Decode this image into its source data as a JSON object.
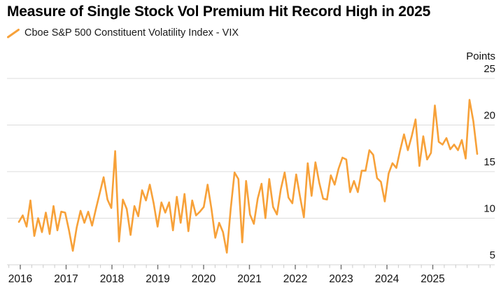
{
  "header": {
    "title": "Measure of Single Stock Vol Premium Hit Record High in 2025"
  },
  "legend": {
    "series_label": "Cboe S&P 500 Constituent Volatility Index - VIX",
    "swatch_icon": "orange-diagonal-line"
  },
  "y_axis": {
    "unit_label": "Points",
    "tick_labels": [
      "25",
      "20",
      "15",
      "10",
      "5"
    ]
  },
  "x_axis": {
    "year_labels": [
      "2016",
      "2017",
      "2018",
      "2019",
      "2020",
      "2021",
      "2022",
      "2023",
      "2024",
      "2025"
    ]
  },
  "chart_data": {
    "type": "line",
    "title": "Measure of Single Stock Vol Premium Hit Record High in 2025",
    "series": [
      {
        "name": "Cboe S&P 500 Constituent Volatility Index - VIX",
        "start": "2016-01",
        "freq": "monthly",
        "values": [
          9.6,
          10.3,
          9.1,
          11.9,
          8.1,
          10.0,
          8.5,
          10.6,
          8.3,
          11.3,
          8.7,
          10.7,
          10.6,
          8.7,
          6.5,
          9.0,
          10.8,
          9.5,
          10.7,
          9.2,
          11.0,
          12.7,
          14.4,
          12.0,
          11.1,
          17.2,
          7.5,
          12.0,
          11.0,
          8.2,
          11.3,
          10.2,
          13.0,
          11.9,
          13.6,
          11.6,
          9.1,
          11.7,
          10.6,
          11.7,
          8.7,
          12.3,
          9.5,
          12.6,
          8.6,
          11.9,
          10.3,
          10.7,
          11.2,
          13.6,
          11.0,
          7.9,
          9.5,
          8.5,
          6.3,
          11.0,
          14.9,
          14.2,
          7.4,
          14.0,
          10.4,
          9.4,
          12.1,
          13.7,
          10.0,
          14.2,
          11.2,
          10.4,
          13.1,
          14.9,
          12.2,
          11.6,
          14.7,
          12.3,
          10.1,
          15.9,
          12.4,
          16.0,
          13.8,
          12.1,
          12.0,
          14.6,
          13.6,
          15.3,
          16.5,
          16.3,
          12.8,
          14.0,
          12.8,
          15.1,
          15.1,
          17.3,
          16.8,
          14.3,
          13.9,
          11.8,
          14.8,
          15.9,
          15.4,
          17.3,
          19.0,
          17.3,
          18.8,
          20.6,
          15.6,
          18.8,
          16.3,
          17.0,
          22.1,
          18.2,
          17.9,
          18.6,
          17.4,
          17.9,
          17.3,
          18.4,
          16.4,
          22.7,
          20.4,
          16.9
        ]
      }
    ],
    "ylabel": "Points",
    "y_ticks": [
      25,
      20,
      15,
      10,
      5
    ],
    "ylim": [
      5,
      25.8
    ],
    "x_tick_years": [
      2016,
      2017,
      2018,
      2019,
      2020,
      2021,
      2022,
      2023,
      2024,
      2025
    ],
    "minor_ticks": "quarterly",
    "grid": "horizontal",
    "legend_position": "top-left",
    "axis_label_position": "right"
  },
  "colors": {
    "line": "#f7a139",
    "grid": "#dcdcdc",
    "axis_line": "#d4d4d4",
    "tick_major": "#6f6f6f",
    "tick_minor": "#c9c9c9",
    "title_text": "#000000",
    "label_text": "#111111"
  }
}
